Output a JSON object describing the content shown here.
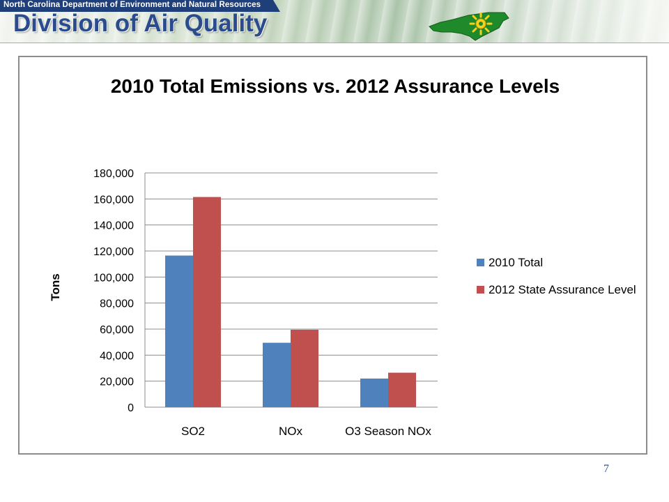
{
  "header": {
    "department": "North Carolina Department of Environment and Natural Resources",
    "division": "Division of Air Quality",
    "logo_icon": "nc-state-sun-icon"
  },
  "colors": {
    "series_2010": "#4f81bd",
    "series_2012": "#c0504d",
    "header_navy": "#1f3f7a",
    "division_text": "#2a4b8d"
  },
  "chart_data": {
    "type": "bar",
    "title": "2010 Total Emissions vs. 2012 Assurance Levels",
    "xlabel": "",
    "ylabel": "Tons",
    "categories": [
      "SO2",
      "NOx",
      "O3 Season NOx"
    ],
    "series": [
      {
        "name": "2010 Total",
        "color": "#4f81bd",
        "values": [
          116500,
          49500,
          22000
        ]
      },
      {
        "name": "2012 State Assurance Level",
        "color": "#c0504d",
        "values": [
          161500,
          59500,
          26500
        ]
      }
    ],
    "ylim": [
      0,
      180000
    ],
    "yticks": [
      0,
      20000,
      40000,
      60000,
      80000,
      100000,
      120000,
      140000,
      160000,
      180000
    ],
    "ytick_labels": [
      "0",
      "20,000",
      "40,000",
      "60,000",
      "80,000",
      "100,000",
      "120,000",
      "140,000",
      "160,000",
      "180,000"
    ],
    "grid": true,
    "legend_position": "right"
  },
  "footer": {
    "page_number": "7"
  }
}
